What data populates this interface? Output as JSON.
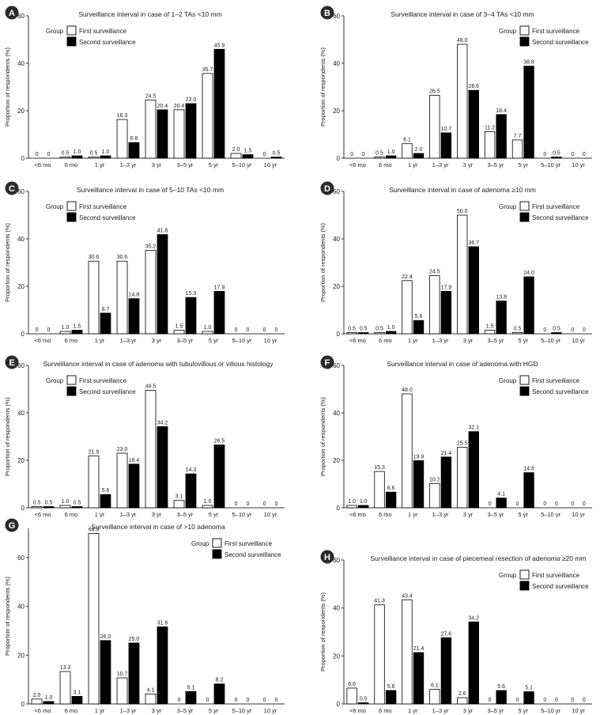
{
  "legend": {
    "group_label": "Group",
    "first_label": "First surveillance",
    "second_label": "Second surveillance"
  },
  "colors": {
    "first_fill": "#ffffff",
    "second_fill": "#000000",
    "axis": "#333333",
    "badge": "#2b2b2b"
  },
  "chart_data": [
    {
      "id": "A",
      "type": "bar",
      "title": "Surveillance interval in case of 1–2 TAs <10 mm",
      "ylabel": "Proportion of respondents (%)",
      "ylim": [
        0,
        60
      ],
      "yticks": [
        0,
        20,
        40,
        60
      ],
      "categories": [
        "<6 mo",
        "6 mo",
        "1 yr",
        "1–3 yr",
        "3 yr",
        "3–5 yr",
        "5 yr",
        "5–10 yr",
        "10 yr"
      ],
      "series": [
        {
          "name": "First surveillance",
          "values": [
            0,
            0.5,
            0.5,
            16.3,
            24.5,
            20.4,
            35.7,
            2.0,
            0
          ]
        },
        {
          "name": "Second surveillance",
          "values": [
            0,
            1.0,
            1.0,
            6.6,
            20.4,
            23.0,
            45.9,
            1.5,
            0.5
          ]
        }
      ],
      "legend_position": "top-left"
    },
    {
      "id": "B",
      "type": "bar",
      "title": "Surveillance interval in case of 3–4 TAs <10 mm",
      "ylabel": "Proportion of respondents (%)",
      "ylim": [
        0,
        60
      ],
      "yticks": [
        0,
        20,
        40,
        60
      ],
      "categories": [
        "<6 mo",
        "6 mo",
        "1 yr",
        "1–3 yr",
        "3 yr",
        "3–5 yr",
        "5 yr",
        "5–10 yr",
        "10 yr"
      ],
      "series": [
        {
          "name": "First surveillance",
          "values": [
            0,
            0.5,
            6.1,
            26.5,
            48.0,
            11.2,
            7.7,
            0,
            0
          ]
        },
        {
          "name": "Second surveillance",
          "values": [
            0,
            1.0,
            2.0,
            10.7,
            28.6,
            18.4,
            38.8,
            0.5,
            0
          ]
        }
      ],
      "legend_position": "top-right"
    },
    {
      "id": "C",
      "type": "bar",
      "title": "Surveillance interval in case of 5–10 TAs <10 mm",
      "ylabel": "Proportion of respondents (%)",
      "ylim": [
        0,
        60
      ],
      "yticks": [
        0,
        20,
        40,
        60
      ],
      "categories": [
        "<6 mo",
        "6 mo",
        "1 yr",
        "1–3 yr",
        "3 yr",
        "3–5 yr",
        "5 yr",
        "5–10 yr",
        "10 yr"
      ],
      "series": [
        {
          "name": "First surveillance",
          "values": [
            0,
            1.0,
            30.6,
            30.6,
            35.2,
            1.5,
            1.0,
            0,
            0
          ]
        },
        {
          "name": "Second surveillance",
          "values": [
            0,
            1.5,
            8.7,
            14.8,
            41.8,
            15.3,
            17.9,
            0,
            0
          ]
        }
      ],
      "legend_position": "top-left"
    },
    {
      "id": "D",
      "type": "bar",
      "title": "Surveillance interval in case of adenoma ≥10 mm",
      "ylabel": "Proportion of respondents (%)",
      "ylim": [
        0,
        60
      ],
      "yticks": [
        0,
        20,
        40,
        60
      ],
      "categories": [
        "<6 mo",
        "6 mo",
        "1 yr",
        "1–3 yr",
        "3 yr",
        "3–5 yr",
        "5 yr",
        "5–10 yr",
        "10 yr"
      ],
      "series": [
        {
          "name": "First surveillance",
          "values": [
            0.5,
            0.5,
            22.4,
            24.5,
            50.0,
            1.5,
            0.5,
            0,
            0
          ]
        },
        {
          "name": "Second surveillance",
          "values": [
            0.5,
            1.0,
            5.6,
            17.9,
            36.7,
            13.8,
            24.0,
            0.5,
            0
          ]
        }
      ],
      "legend_position": "top-right"
    },
    {
      "id": "E",
      "type": "bar",
      "title": "Surveillance interval in case of adenoma with tubulovillous or villous histology",
      "ylabel": "Proportion of respondents (%)",
      "ylim": [
        0,
        60
      ],
      "yticks": [
        0,
        20,
        40,
        60
      ],
      "categories": [
        "<6 mo",
        "6 mo",
        "1 yr",
        "1–3 yr",
        "3 yr",
        "3–5 yr",
        "5 yr",
        "5–10 yr",
        "10 yr"
      ],
      "series": [
        {
          "name": "First surveillance",
          "values": [
            0.5,
            1.0,
            21.9,
            23.0,
            49.5,
            3.1,
            1.0,
            0,
            0
          ]
        },
        {
          "name": "Second surveillance",
          "values": [
            0.5,
            0.5,
            5.6,
            18.4,
            34.2,
            14.3,
            26.5,
            0,
            0
          ]
        }
      ],
      "legend_position": "top-left"
    },
    {
      "id": "F",
      "type": "bar",
      "title": "Surveillance interval in case of adenoma with HGD",
      "ylabel": "Proportion of respondents (%)",
      "ylim": [
        0,
        60
      ],
      "yticks": [
        0,
        20,
        40,
        60
      ],
      "categories": [
        "<6 mo",
        "6 mo",
        "1 yr",
        "1–3 yr",
        "3 yr",
        "3–5 yr",
        "5 yr",
        "5–10 yr",
        "10 yr"
      ],
      "series": [
        {
          "name": "First surveillance",
          "values": [
            1.0,
            15.3,
            48.0,
            10.2,
            25.5,
            0,
            0,
            0,
            0
          ]
        },
        {
          "name": "Second surveillance",
          "values": [
            1.0,
            6.6,
            19.9,
            21.4,
            32.1,
            4.1,
            14.8,
            0,
            0
          ]
        }
      ],
      "legend_position": "top-right"
    },
    {
      "id": "G",
      "type": "bar",
      "title": "Surveillance interval in case of >10 adenoma",
      "ylabel": "Proportion of respondents (%)",
      "ylim": [
        0,
        72
      ],
      "yticks": [
        0,
        20,
        40,
        60
      ],
      "categories": [
        "<6 mo",
        "6 mo",
        "1 yr",
        "1–3 yr",
        "3 yr",
        "3–5 yr",
        "5 yr",
        "5–10 yr",
        "10 yr"
      ],
      "series": [
        {
          "name": "First surveillance",
          "values": [
            2.0,
            13.3,
            69.9,
            10.7,
            4.1,
            0,
            0,
            0,
            0
          ]
        },
        {
          "name": "Second surveillance",
          "values": [
            1.0,
            3.1,
            26.0,
            25.0,
            31.6,
            5.1,
            8.2,
            0,
            0
          ]
        }
      ],
      "legend_position": "top-right"
    },
    {
      "id": "H",
      "type": "bar",
      "title": "Surveillance interval in case of piecemeal resection of adenoma ≥20 mm",
      "ylabel": "Proportion of respondents (%)",
      "ylim": [
        0,
        60
      ],
      "yticks": [
        0,
        20,
        40,
        60
      ],
      "categories": [
        "<6 mo",
        "6 mo",
        "1 yr",
        "1–3 yr",
        "3 yr",
        "3–5 yr",
        "5 yr",
        "5–10 yr",
        "10 yr"
      ],
      "series": [
        {
          "name": "First surveillance",
          "values": [
            6.6,
            41.3,
            43.4,
            6.1,
            2.6,
            0,
            0,
            0,
            0
          ]
        },
        {
          "name": "Second surveillance",
          "values": [
            0.5,
            5.6,
            21.4,
            27.6,
            34.2,
            5.6,
            5.1,
            0,
            0
          ]
        }
      ],
      "legend_position": "top-right"
    }
  ]
}
